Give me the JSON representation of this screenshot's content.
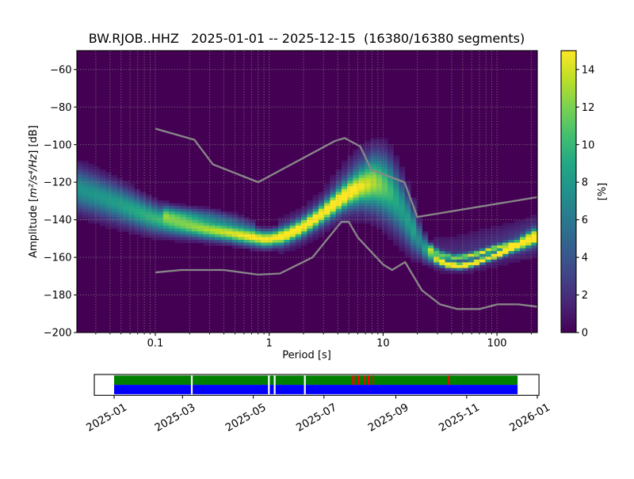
{
  "chart_data": {
    "type": "heatmap",
    "title": "BW.RJOB..HHZ   2025-01-01 -- 2025-12-15  (16380/16380 segments)",
    "xlabel": "Period [s]",
    "ylabel": {
      "prefix": "Amplitude [",
      "math": "m²/s⁴/Hz",
      "suffix": "] [dB]"
    },
    "xscale": "log",
    "xlim": [
      0.0205,
      226
    ],
    "ylim": [
      -200,
      -50
    ],
    "xticks": [
      {
        "v": 0.1,
        "label": "0.1"
      },
      {
        "v": 1,
        "label": "1"
      },
      {
        "v": 10,
        "label": "10"
      },
      {
        "v": 100,
        "label": "100"
      }
    ],
    "yticks": [
      {
        "v": -60,
        "label": "−60"
      },
      {
        "v": -80,
        "label": "−80"
      },
      {
        "v": -100,
        "label": "−100"
      },
      {
        "v": -120,
        "label": "−120"
      },
      {
        "v": -140,
        "label": "−140"
      },
      {
        "v": -160,
        "label": "−160"
      },
      {
        "v": -180,
        "label": "−180"
      },
      {
        "v": -200,
        "label": "−200"
      }
    ],
    "grid": {
      "style": "dotted",
      "color": "#8f8f80",
      "x_minor": true,
      "y_step_db": 20
    },
    "colorbar": {
      "label": "[%]",
      "vmin": 0,
      "vmax": 15,
      "ticks": [
        0,
        2,
        4,
        6,
        8,
        10,
        12,
        14
      ],
      "colormap": "viridis"
    },
    "colormap_stops": [
      "#440154",
      "#482475",
      "#414487",
      "#355f8d",
      "#2a788e",
      "#21918c",
      "#22a884",
      "#44bf70",
      "#7ad151",
      "#bddf26",
      "#fde725"
    ],
    "ppsd_density": {
      "note": "probability components per period bin: [period_s, center_dB, sigma_dB, amplitude_rel_15pct]",
      "main": [
        [
          0.0205,
          -123.5,
          7.5,
          0.5
        ],
        [
          0.03,
          -127.0,
          7.0,
          0.52
        ],
        [
          0.045,
          -131.0,
          6.5,
          0.55
        ],
        [
          0.065,
          -135.0,
          5.8,
          0.6
        ],
        [
          0.095,
          -139.0,
          5.0,
          0.66
        ],
        [
          0.14,
          -141.8,
          4.2,
          0.72
        ],
        [
          0.2,
          -143.6,
          3.6,
          0.8
        ],
        [
          0.3,
          -145.6,
          3.2,
          0.88
        ],
        [
          0.45,
          -147.2,
          3.0,
          0.94
        ],
        [
          0.65,
          -149.0,
          2.9,
          1.0
        ],
        [
          0.95,
          -150.6,
          2.8,
          1.05
        ],
        [
          1.35,
          -148.8,
          2.8,
          1.02
        ],
        [
          1.9,
          -144.6,
          3.0,
          0.98
        ],
        [
          2.7,
          -138.6,
          3.2,
          0.96
        ],
        [
          3.8,
          -131.5,
          3.8,
          0.94
        ],
        [
          5.0,
          -126.0,
          4.5,
          0.82
        ],
        [
          6.5,
          -122.5,
          6.0,
          0.62
        ],
        [
          8.5,
          -120.5,
          8.5,
          0.46
        ],
        [
          11,
          -124.0,
          10,
          0.36
        ],
        [
          14,
          -133.0,
          10,
          0.3
        ],
        [
          18,
          -145.0,
          7.5,
          0.38
        ],
        [
          23,
          -155.0,
          4.5,
          0.55
        ],
        [
          29,
          -161.0,
          1.8,
          0.85
        ],
        [
          37,
          -164.0,
          1.2,
          1.1
        ],
        [
          48,
          -164.8,
          1.1,
          1.15
        ],
        [
          62,
          -163.5,
          1.1,
          1.1
        ],
        [
          80,
          -161.0,
          1.1,
          1.05
        ],
        [
          102,
          -158.8,
          1.2,
          1.1
        ],
        [
          130,
          -155.8,
          1.4,
          1.1
        ],
        [
          165,
          -152.6,
          2.0,
          1.15
        ],
        [
          205,
          -149.8,
          2.4,
          1.15
        ],
        [
          226,
          -148.8,
          2.4,
          1.15
        ]
      ],
      "upper_line": [
        [
          25,
          -154.5,
          1.6,
          0.4
        ],
        [
          32,
          -158.5,
          1.2,
          0.6
        ],
        [
          42,
          -160.3,
          1.0,
          0.72
        ],
        [
          55,
          -159.6,
          1.0,
          0.8
        ],
        [
          72,
          -157.8,
          1.0,
          0.85
        ],
        [
          95,
          -155.2,
          1.0,
          0.8
        ],
        [
          120,
          -153.6,
          1.0,
          0.7
        ],
        [
          145,
          -152.4,
          1.2,
          0.5
        ]
      ],
      "left_secondary": [
        [
          0.12,
          -136.5,
          2.6,
          0.32
        ],
        [
          0.2,
          -137.5,
          2.6,
          0.35
        ],
        [
          0.32,
          -138.8,
          2.6,
          0.32
        ],
        [
          0.5,
          -141.0,
          2.6,
          0.24
        ],
        [
          0.72,
          -143.8,
          2.6,
          0.14
        ]
      ],
      "broad_fan": [
        [
          1.2,
          -149.0,
          7.0,
          0.12
        ],
        [
          2.0,
          -143.0,
          7.0,
          0.15
        ],
        [
          3.0,
          -136.0,
          7.5,
          0.18
        ],
        [
          4.2,
          -127.0,
          8.5,
          0.25
        ],
        [
          6.0,
          -121.0,
          10,
          0.35
        ],
        [
          8.5,
          -119.5,
          11,
          0.42
        ],
        [
          11,
          -123.0,
          12,
          0.35
        ],
        [
          14.5,
          -133.0,
          11,
          0.25
        ],
        [
          19,
          -145.0,
          9.0,
          0.16
        ]
      ],
      "right_cloud": [
        [
          28,
          -158.0,
          7.0,
          0.12
        ],
        [
          45,
          -159.0,
          7.5,
          0.13
        ],
        [
          70,
          -156.5,
          7.5,
          0.14
        ],
        [
          110,
          -153.5,
          7.0,
          0.16
        ],
        [
          160,
          -151.0,
          6.5,
          0.2
        ],
        [
          226,
          -148.5,
          6.5,
          0.22
        ]
      ]
    },
    "noise_models": {
      "color": "#888888",
      "nhnm": [
        [
          0.1,
          -91.5
        ],
        [
          0.22,
          -97.4
        ],
        [
          0.32,
          -110.5
        ],
        [
          0.8,
          -120.0
        ],
        [
          3.8,
          -98.0
        ],
        [
          4.6,
          -96.5
        ],
        [
          6.3,
          -101.0
        ],
        [
          7.9,
          -113.5
        ],
        [
          15.4,
          -120.0
        ],
        [
          20.0,
          -138.5
        ],
        [
          354.8,
          -126.0
        ]
      ],
      "nlnm": [
        [
          0.1,
          -168.0
        ],
        [
          0.17,
          -166.7
        ],
        [
          0.4,
          -166.7
        ],
        [
          0.8,
          -169.2
        ],
        [
          1.24,
          -168.6
        ],
        [
          2.4,
          -160.0
        ],
        [
          4.3,
          -141.1
        ],
        [
          5.0,
          -141.1
        ],
        [
          6.0,
          -149.4
        ],
        [
          10.0,
          -163.8
        ],
        [
          12.0,
          -166.7
        ],
        [
          15.6,
          -162.5
        ],
        [
          21.9,
          -177.5
        ],
        [
          31.6,
          -185.0
        ],
        [
          45.0,
          -187.5
        ],
        [
          70.0,
          -187.5
        ],
        [
          101.0,
          -185.0
        ],
        [
          154.0,
          -185.0
        ],
        [
          328.0,
          -187.5
        ]
      ]
    },
    "timeline": {
      "coverage_color": "#008000",
      "used_color": "#0000ff",
      "gap_mark_color": "#ff0000",
      "axis_pad_days_before": 17.1,
      "axis_pad_days_after": 1.4,
      "coverage": {
        "start_day": 0,
        "end_day": 348
      },
      "white_gaps_days": [
        67,
        133.5,
        138.5,
        164.5
      ],
      "red_marks_days": [
        [
          205.5,
          1.2
        ],
        [
          207.8,
          1.2
        ],
        [
          211.0,
          2.8
        ],
        [
          215.8,
          1.4
        ],
        [
          219.5,
          2.2
        ],
        [
          223.5,
          1.4
        ],
        [
          288.5,
          1.6
        ]
      ],
      "ticks": [
        {
          "day": 0,
          "label": "2025-01"
        },
        {
          "day": 59,
          "label": "2025-03"
        },
        {
          "day": 120,
          "label": "2025-05"
        },
        {
          "day": 181,
          "label": "2025-07"
        },
        {
          "day": 243,
          "label": "2025-09"
        },
        {
          "day": 304,
          "label": "2025-11"
        },
        {
          "day": 365,
          "label": "2026-01"
        }
      ]
    }
  }
}
